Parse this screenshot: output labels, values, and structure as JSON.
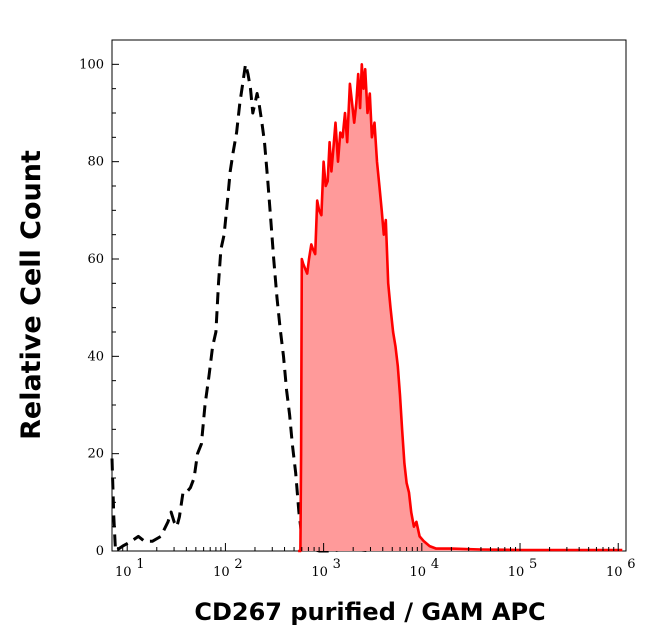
{
  "chart_data": {
    "type": "area",
    "xlabel": "CD267 purified / GAM APC",
    "ylabel": "Relative Cell Count",
    "x_scale": "log",
    "xlim": [
      7,
      1200000
    ],
    "ylim": [
      0,
      105
    ],
    "x_ticks": [
      {
        "value": 10,
        "base": "10",
        "exp": "1"
      },
      {
        "value": 100,
        "base": "10",
        "exp": "2"
      },
      {
        "value": 1000,
        "base": "10",
        "exp": "3"
      },
      {
        "value": 10000,
        "base": "10",
        "exp": "4"
      },
      {
        "value": 100000,
        "base": "10",
        "exp": "5"
      },
      {
        "value": 1000000,
        "base": "10",
        "exp": "6"
      }
    ],
    "y_ticks": [
      "0",
      "20",
      "40",
      "60",
      "80",
      "100"
    ],
    "grid": false,
    "series": [
      {
        "style": "dashed-outline",
        "color": "#000000",
        "points": [
          [
            7,
            19
          ],
          [
            7.3,
            7
          ],
          [
            7.6,
            0
          ],
          [
            9,
            1
          ],
          [
            11,
            2
          ],
          [
            13,
            3
          ],
          [
            15,
            2
          ],
          [
            18,
            2
          ],
          [
            22,
            3
          ],
          [
            26,
            6
          ],
          [
            28,
            8
          ],
          [
            30,
            6
          ],
          [
            32,
            5
          ],
          [
            34,
            7
          ],
          [
            37,
            12
          ],
          [
            40,
            12
          ],
          [
            44,
            13
          ],
          [
            48,
            15
          ],
          [
            52,
            20
          ],
          [
            57,
            22
          ],
          [
            62,
            30
          ],
          [
            68,
            36
          ],
          [
            74,
            42
          ],
          [
            80,
            45
          ],
          [
            85,
            55
          ],
          [
            90,
            62
          ],
          [
            97,
            65
          ],
          [
            105,
            72
          ],
          [
            112,
            78
          ],
          [
            120,
            82
          ],
          [
            130,
            86
          ],
          [
            140,
            92
          ],
          [
            150,
            96
          ],
          [
            160,
            100
          ],
          [
            170,
            98
          ],
          [
            180,
            95
          ],
          [
            190,
            90
          ],
          [
            200,
            92
          ],
          [
            210,
            94
          ],
          [
            220,
            92
          ],
          [
            235,
            88
          ],
          [
            250,
            84
          ],
          [
            270,
            76
          ],
          [
            290,
            68
          ],
          [
            310,
            60
          ],
          [
            335,
            52
          ],
          [
            360,
            46
          ],
          [
            390,
            40
          ],
          [
            420,
            33
          ],
          [
            450,
            28
          ],
          [
            480,
            22
          ],
          [
            520,
            16
          ],
          [
            560,
            8
          ],
          [
            600,
            3
          ],
          [
            650,
            1
          ],
          [
            750,
            0.5
          ],
          [
            900,
            0
          ],
          [
            1200,
            0
          ],
          [
            1800,
            0.5
          ],
          [
            3000,
            0
          ]
        ]
      },
      {
        "style": "filled",
        "color": "#ff0000",
        "fill": "#ff9a9a",
        "points": [
          [
            550,
            0
          ],
          [
            580,
            0
          ],
          [
            590,
            20
          ],
          [
            600,
            60
          ],
          [
            620,
            59
          ],
          [
            650,
            58
          ],
          [
            680,
            57
          ],
          [
            710,
            60
          ],
          [
            750,
            63
          ],
          [
            780,
            62
          ],
          [
            820,
            61
          ],
          [
            860,
            72
          ],
          [
            900,
            70
          ],
          [
            950,
            69
          ],
          [
            1000,
            80
          ],
          [
            1050,
            75
          ],
          [
            1100,
            76
          ],
          [
            1150,
            84
          ],
          [
            1200,
            78
          ],
          [
            1260,
            83
          ],
          [
            1320,
            88
          ],
          [
            1400,
            80
          ],
          [
            1480,
            86
          ],
          [
            1560,
            85
          ],
          [
            1650,
            90
          ],
          [
            1740,
            84
          ],
          [
            1850,
            96
          ],
          [
            1950,
            92
          ],
          [
            2050,
            88
          ],
          [
            2150,
            92
          ],
          [
            2250,
            98
          ],
          [
            2350,
            91
          ],
          [
            2450,
            100
          ],
          [
            2550,
            95
          ],
          [
            2650,
            99
          ],
          [
            2800,
            90
          ],
          [
            2950,
            94
          ],
          [
            3100,
            85
          ],
          [
            3300,
            88
          ],
          [
            3500,
            80
          ],
          [
            3700,
            75
          ],
          [
            3900,
            70
          ],
          [
            4100,
            65
          ],
          [
            4300,
            68
          ],
          [
            4550,
            55
          ],
          [
            4800,
            50
          ],
          [
            5100,
            45
          ],
          [
            5400,
            42
          ],
          [
            5700,
            38
          ],
          [
            6000,
            32
          ],
          [
            6300,
            25
          ],
          [
            6650,
            18
          ],
          [
            7000,
            14
          ],
          [
            7400,
            12
          ],
          [
            7800,
            8
          ],
          [
            8300,
            5
          ],
          [
            8800,
            6
          ],
          [
            9500,
            3
          ],
          [
            10500,
            2
          ],
          [
            12000,
            1
          ],
          [
            14000,
            0.5
          ],
          [
            20000,
            0.5
          ],
          [
            40000,
            0.3
          ],
          [
            100000,
            0.2
          ],
          [
            300000,
            0.2
          ],
          [
            700000,
            0.2
          ],
          [
            1100000,
            0.2
          ]
        ]
      }
    ]
  }
}
